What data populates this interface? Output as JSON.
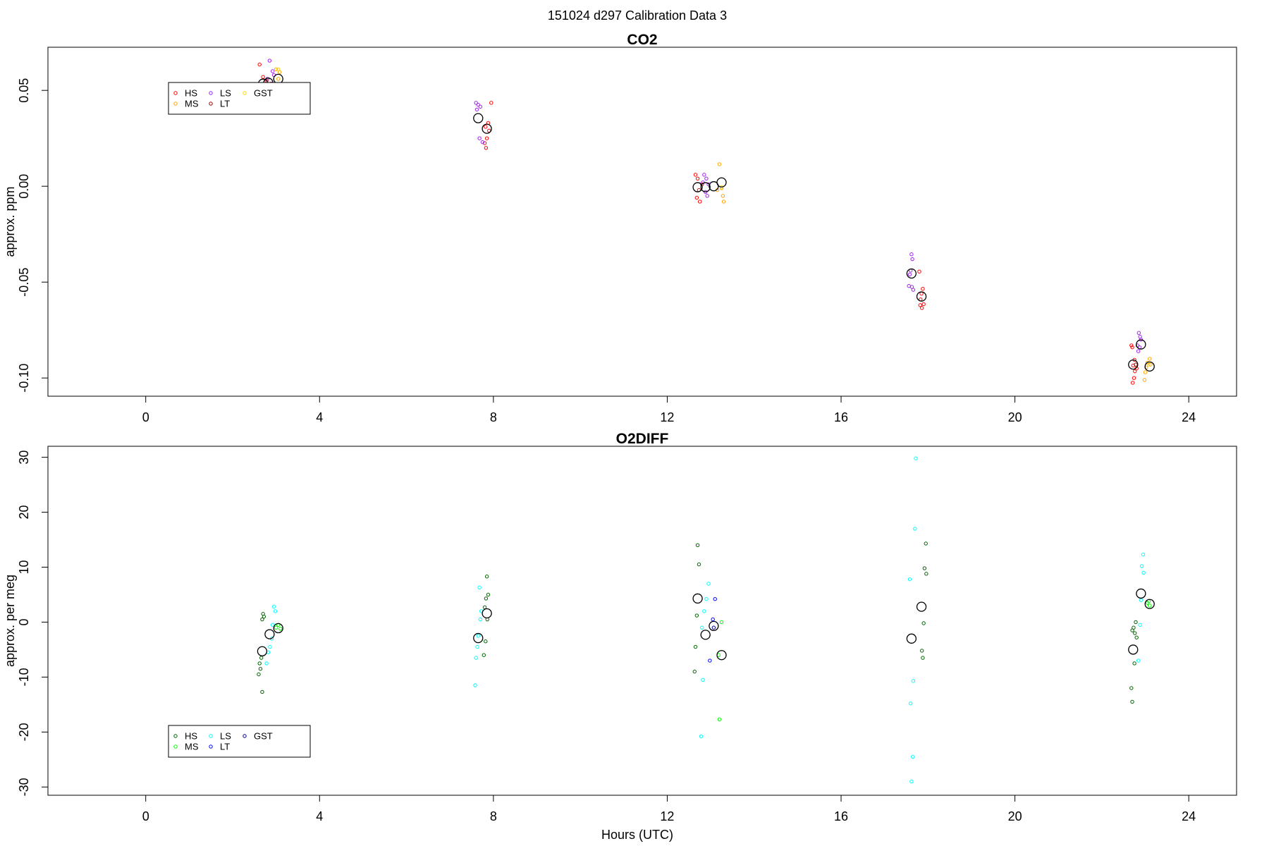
{
  "figure": {
    "title": "151024   d297   Calibration Data 3",
    "xlabel": "Hours (UTC)"
  },
  "chart_data": [
    {
      "type": "scatter",
      "title": "CO2",
      "ylabel": "approx. ppm",
      "xlabel": "",
      "xlim": [
        -2.25,
        25.1
      ],
      "ylim": [
        -0.1095,
        0.0725
      ],
      "xticks": [
        0,
        4,
        8,
        12,
        16,
        20,
        24
      ],
      "yticks": [
        -0.1,
        -0.05,
        0.0,
        0.05
      ],
      "ytick_labels": [
        "-0.10",
        "-0.05",
        "0.00",
        "0.05"
      ],
      "grid": false,
      "legend": {
        "placement": "top-left",
        "entries": [
          {
            "label": "HS",
            "color": "#ff0000"
          },
          {
            "label": "MS",
            "color": "#ffa500"
          },
          {
            "label": "LS",
            "color": "#a020f0"
          },
          {
            "label": "LT",
            "color": "#8b0000"
          },
          {
            "label": "GST",
            "color": "#ffd700"
          }
        ]
      },
      "series": [
        {
          "name": "HS",
          "color": "#ff0000",
          "points": [
            [
              2.62,
              0.0635
            ],
            [
              2.7,
              0.057
            ],
            [
              2.78,
              0.055
            ],
            [
              2.88,
              0.0535
            ],
            [
              2.72,
              0.0515
            ],
            [
              7.95,
              0.0435
            ],
            [
              7.88,
              0.033
            ],
            [
              7.82,
              0.031
            ],
            [
              7.9,
              0.029
            ],
            [
              7.85,
              0.025
            ],
            [
              7.8,
              0.0225
            ],
            [
              7.83,
              0.02
            ],
            [
              12.65,
              0.006
            ],
            [
              12.7,
              0.004
            ],
            [
              12.73,
              -0.002
            ],
            [
              12.68,
              -0.006
            ],
            [
              12.75,
              -0.008
            ],
            [
              12.8,
              0.001
            ],
            [
              17.8,
              -0.0445
            ],
            [
              17.88,
              -0.0535
            ],
            [
              17.85,
              -0.056
            ],
            [
              17.83,
              -0.059
            ],
            [
              17.9,
              -0.0615
            ],
            [
              17.86,
              -0.0635
            ],
            [
              17.82,
              -0.062
            ],
            [
              22.7,
              -0.084
            ],
            [
              22.68,
              -0.083
            ],
            [
              22.75,
              -0.0905
            ],
            [
              22.72,
              -0.0935
            ],
            [
              22.76,
              -0.0965
            ],
            [
              22.74,
              -0.1
            ],
            [
              22.71,
              -0.1025
            ],
            [
              22.8,
              -0.095
            ]
          ]
        },
        {
          "name": "MS",
          "color": "#ffa500",
          "points": [
            [
              3.0,
              0.061
            ],
            [
              3.08,
              0.0595
            ],
            [
              3.05,
              0.056
            ],
            [
              13.2,
              0.0115
            ],
            [
              13.25,
              -0.001
            ],
            [
              13.28,
              -0.005
            ],
            [
              13.3,
              -0.008
            ],
            [
              13.15,
              -0.002
            ],
            [
              23.1,
              -0.09
            ],
            [
              23.05,
              -0.092
            ],
            [
              23.02,
              -0.0945
            ],
            [
              23.0,
              -0.097
            ],
            [
              22.98,
              -0.101
            ],
            [
              23.12,
              -0.093
            ]
          ]
        },
        {
          "name": "LS",
          "color": "#a020f0",
          "points": [
            [
              2.85,
              0.0655
            ],
            [
              2.92,
              0.06
            ],
            [
              2.95,
              0.058
            ],
            [
              2.8,
              0.056
            ],
            [
              2.9,
              0.0535
            ],
            [
              7.6,
              0.0435
            ],
            [
              7.65,
              0.0425
            ],
            [
              7.7,
              0.0415
            ],
            [
              7.62,
              0.04
            ],
            [
              7.68,
              0.025
            ],
            [
              7.75,
              0.023
            ],
            [
              12.85,
              0.006
            ],
            [
              12.9,
              0.004
            ],
            [
              12.95,
              0.001
            ],
            [
              12.88,
              -0.003
            ],
            [
              12.92,
              -0.005
            ],
            [
              12.82,
              0.002
            ],
            [
              17.62,
              -0.0355
            ],
            [
              17.64,
              -0.038
            ],
            [
              17.6,
              -0.044
            ],
            [
              17.58,
              -0.046
            ],
            [
              17.56,
              -0.052
            ],
            [
              17.63,
              -0.0525
            ],
            [
              17.66,
              -0.054
            ],
            [
              22.85,
              -0.0765
            ],
            [
              22.88,
              -0.0785
            ],
            [
              22.9,
              -0.08
            ],
            [
              22.82,
              -0.083
            ],
            [
              22.84,
              -0.086
            ],
            [
              22.87,
              -0.084
            ]
          ]
        },
        {
          "name": "LT",
          "color": "#8b0000",
          "points": [
            [
              22.78,
              -0.093
            ]
          ]
        },
        {
          "name": "GST",
          "color": "#ffd700",
          "points": [
            [
              3.05,
              0.061
            ],
            [
              13.25,
              -0.0005
            ],
            [
              23.08,
              -0.093
            ]
          ]
        },
        {
          "name": "",
          "color": "#000000",
          "kind": "mean",
          "points": [
            [
              2.7,
              0.0535
            ],
            [
              2.82,
              0.054
            ],
            [
              3.05,
              0.056
            ],
            [
              7.65,
              0.0355
            ],
            [
              7.85,
              0.03
            ],
            [
              12.7,
              -0.0005
            ],
            [
              12.88,
              -0.0005
            ],
            [
              13.07,
              0.0
            ],
            [
              13.25,
              0.002
            ],
            [
              17.62,
              -0.0455
            ],
            [
              17.85,
              -0.0575
            ],
            [
              22.72,
              -0.093
            ],
            [
              22.9,
              -0.0825
            ],
            [
              23.1,
              -0.094
            ]
          ]
        }
      ]
    },
    {
      "type": "scatter",
      "title": "O2DIFF",
      "ylabel": "approx. per meg",
      "xlabel": "Hours (UTC)",
      "xlim": [
        -2.25,
        25.1
      ],
      "ylim": [
        -31.5,
        32.0
      ],
      "xticks": [
        0,
        4,
        8,
        12,
        16,
        20,
        24
      ],
      "yticks": [
        -30,
        -20,
        -10,
        0,
        10,
        20,
        30
      ],
      "ytick_labels": [
        "-30",
        "-20",
        "-10",
        "0",
        "10",
        "20",
        "30"
      ],
      "grid": false,
      "legend": {
        "placement": "bottom-left",
        "entries": [
          {
            "label": "HS",
            "color": "#006400"
          },
          {
            "label": "MS",
            "color": "#00ff00"
          },
          {
            "label": "LS",
            "color": "#00ffff"
          },
          {
            "label": "LT",
            "color": "#0000ff"
          },
          {
            "label": "GST",
            "color": "#00008b"
          }
        ]
      },
      "series": [
        {
          "name": "HS",
          "color": "#006400",
          "points": [
            [
              2.7,
              1.5
            ],
            [
              2.68,
              0.5
            ],
            [
              2.72,
              1.0
            ],
            [
              2.66,
              -6.5
            ],
            [
              2.62,
              -7.5
            ],
            [
              2.64,
              -8.5
            ],
            [
              2.6,
              -9.5
            ],
            [
              2.68,
              -12.7
            ],
            [
              7.85,
              8.3
            ],
            [
              7.88,
              5.0
            ],
            [
              7.83,
              4.3
            ],
            [
              7.8,
              2.7
            ],
            [
              7.86,
              0.5
            ],
            [
              7.82,
              -3.5
            ],
            [
              7.78,
              -6.0
            ],
            [
              12.7,
              14.0
            ],
            [
              12.73,
              10.5
            ],
            [
              12.68,
              1.2
            ],
            [
              12.65,
              -4.5
            ],
            [
              12.63,
              -9.0
            ],
            [
              17.95,
              14.3
            ],
            [
              17.92,
              9.8
            ],
            [
              17.96,
              8.8
            ],
            [
              17.9,
              -0.2
            ],
            [
              17.86,
              -5.2
            ],
            [
              17.88,
              -6.5
            ],
            [
              22.7,
              -1.5
            ],
            [
              22.73,
              -1.0
            ],
            [
              22.78,
              0.0
            ],
            [
              22.76,
              -2.0
            ],
            [
              22.8,
              -2.8
            ],
            [
              22.68,
              -12.0
            ],
            [
              22.7,
              -14.5
            ],
            [
              22.75,
              -7.5
            ]
          ]
        },
        {
          "name": "MS",
          "color": "#00ff00",
          "points": [
            [
              3.05,
              -0.5
            ],
            [
              3.1,
              -1.2
            ],
            [
              3.0,
              -1.0
            ],
            [
              13.2,
              -17.7
            ],
            [
              13.25,
              0.0
            ],
            [
              13.18,
              -6.0
            ],
            [
              23.05,
              3.5
            ],
            [
              23.1,
              3.0
            ],
            [
              23.08,
              3.8
            ]
          ]
        },
        {
          "name": "LS",
          "color": "#00ffff",
          "points": [
            [
              2.95,
              2.8
            ],
            [
              2.98,
              2.0
            ],
            [
              2.92,
              -0.5
            ],
            [
              2.9,
              -3.0
            ],
            [
              2.86,
              -4.5
            ],
            [
              2.82,
              -5.5
            ],
            [
              2.78,
              -7.5
            ],
            [
              7.68,
              6.3
            ],
            [
              7.72,
              2.0
            ],
            [
              7.7,
              0.5
            ],
            [
              7.65,
              -2.5
            ],
            [
              7.63,
              -4.5
            ],
            [
              7.6,
              -6.5
            ],
            [
              7.58,
              -11.5
            ],
            [
              12.95,
              7.0
            ],
            [
              12.9,
              4.2
            ],
            [
              12.85,
              2.0
            ],
            [
              12.8,
              -1.0
            ],
            [
              12.82,
              -10.5
            ],
            [
              12.78,
              -20.8
            ],
            [
              17.58,
              7.8
            ],
            [
              17.7,
              17.0
            ],
            [
              17.72,
              29.8
            ],
            [
              17.6,
              -14.8
            ],
            [
              17.66,
              -10.7
            ],
            [
              17.65,
              -24.5
            ],
            [
              17.62,
              -29.0
            ],
            [
              22.95,
              12.3
            ],
            [
              22.92,
              10.2
            ],
            [
              22.96,
              9.0
            ],
            [
              22.9,
              4.0
            ],
            [
              22.88,
              -0.5
            ],
            [
              22.84,
              -7.0
            ]
          ]
        },
        {
          "name": "LT",
          "color": "#0000ff",
          "points": [
            [
              13.05,
              0.5
            ],
            [
              13.1,
              4.2
            ],
            [
              12.98,
              -7.0
            ]
          ]
        },
        {
          "name": "GST",
          "color": "#00008b",
          "points": [
            [
              13.07,
              -1.0
            ]
          ]
        },
        {
          "name": "",
          "color": "#000000",
          "kind": "mean",
          "points": [
            [
              2.68,
              -5.3
            ],
            [
              2.85,
              -2.2
            ],
            [
              3.05,
              -1.1
            ],
            [
              7.65,
              -2.9
            ],
            [
              7.85,
              1.6
            ],
            [
              12.7,
              4.3
            ],
            [
              12.88,
              -2.3
            ],
            [
              13.07,
              -0.7
            ],
            [
              13.25,
              -6.0
            ],
            [
              17.62,
              -3.0
            ],
            [
              17.85,
              2.8
            ],
            [
              22.72,
              -5.0
            ],
            [
              22.9,
              5.2
            ],
            [
              23.1,
              3.3
            ]
          ]
        }
      ]
    }
  ]
}
